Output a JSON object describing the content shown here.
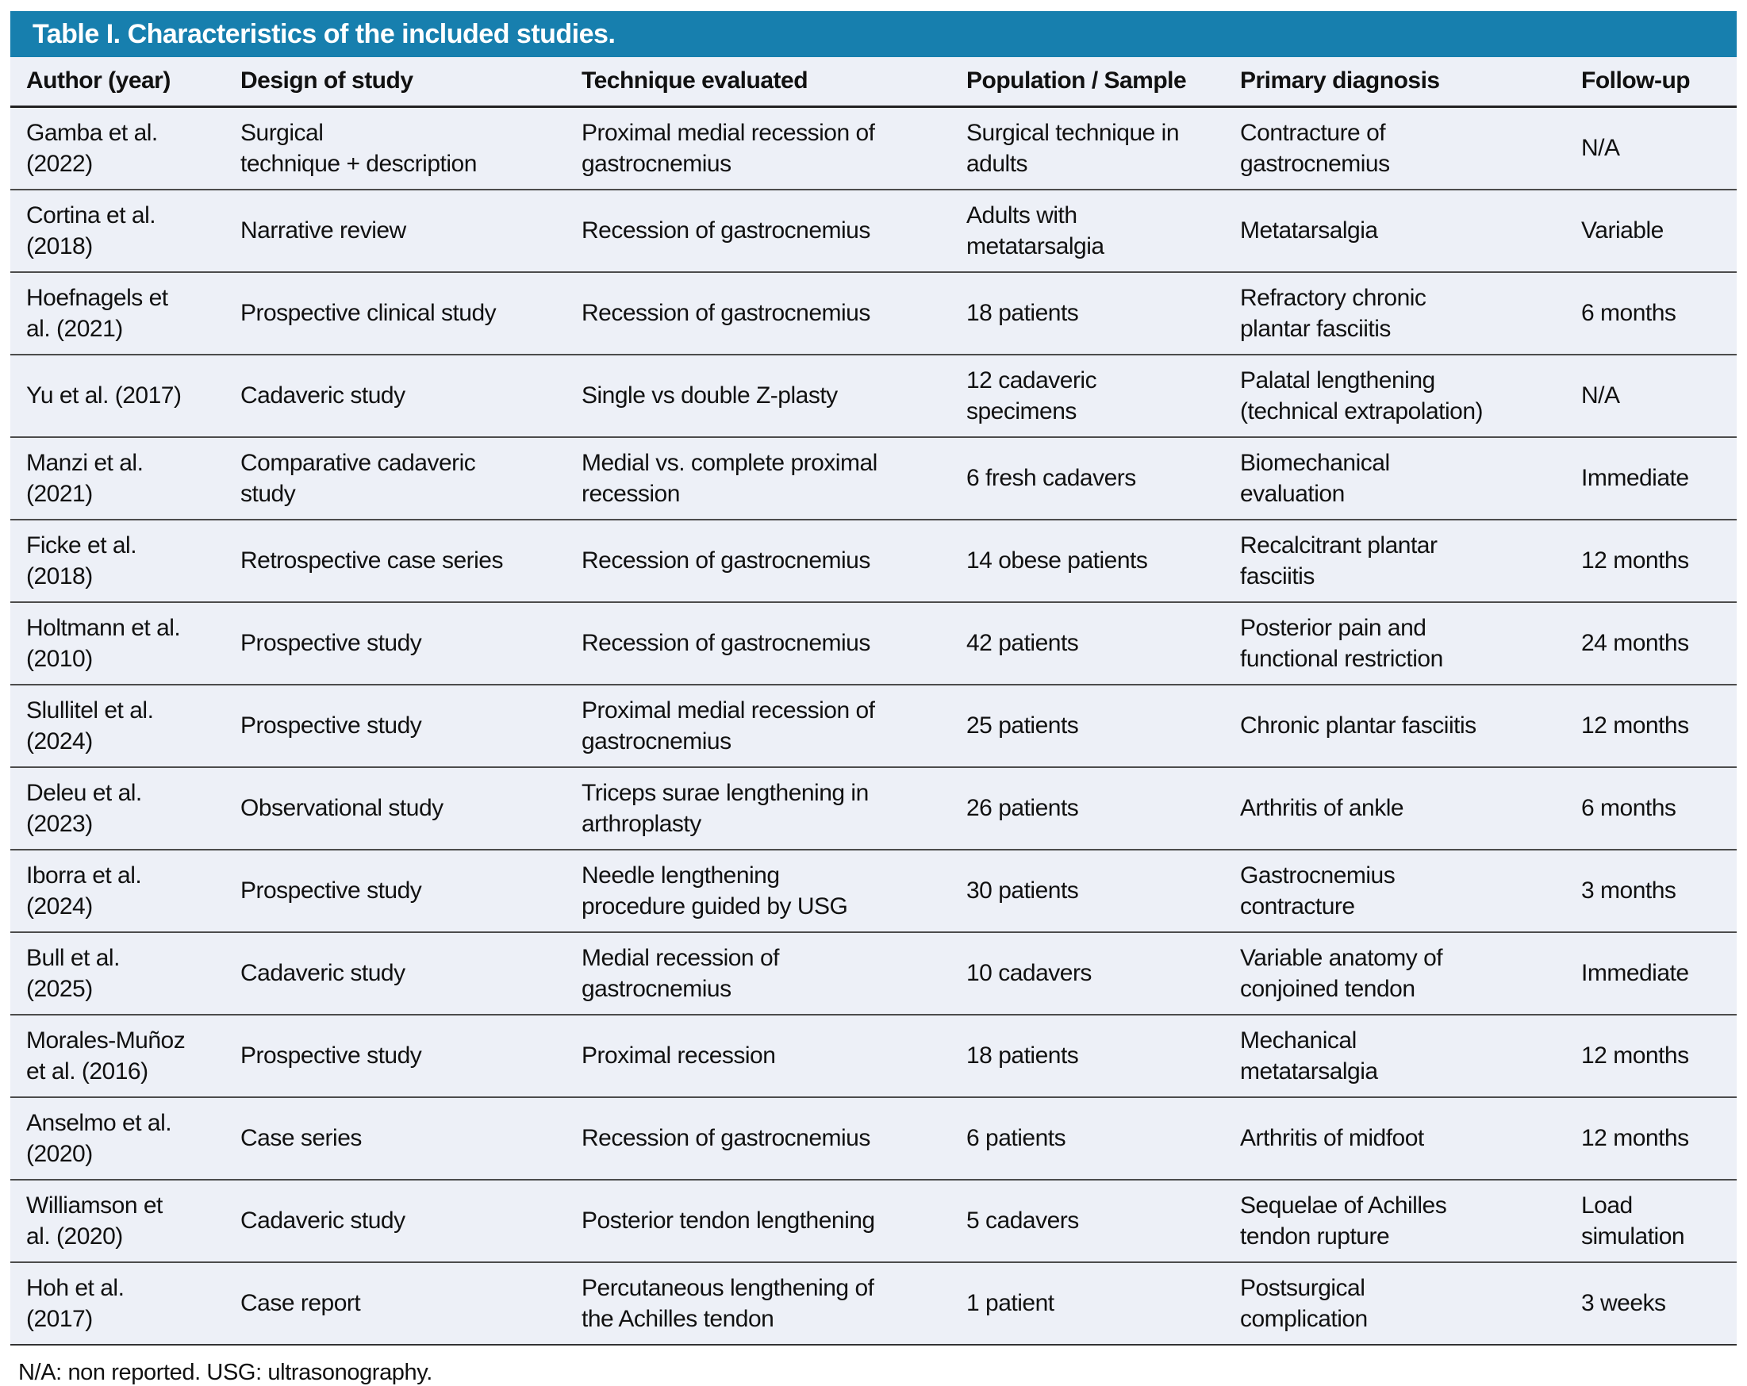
{
  "colors": {
    "header_blue": "#177fae",
    "row_background": "#edf0f7",
    "title_text": "#ffffff",
    "body_text": "#111111",
    "rule_dark": "#222222",
    "rule_row": "#4c4c4c"
  },
  "table": {
    "title": "Table I. Characteristics of the included studies.",
    "columns": [
      "Author (year)",
      "Design of study",
      "Technique evaluated",
      "Population / Sample",
      "Primary diagnosis",
      "Follow-up"
    ],
    "rows": [
      [
        "Gamba et al.\n(2022)",
        "Surgical\ntechnique + description",
        "Proximal medial recession of\ngastrocnemius",
        "Surgical technique in\nadults",
        "Contracture of\ngastrocnemius",
        "N/A"
      ],
      [
        "Cortina et al.\n(2018)",
        "Narrative review",
        "Recession of gastrocnemius",
        "Adults with\nmetatarsalgia",
        "Metatarsalgia",
        "Variable"
      ],
      [
        "Hoefnagels et\nal. (2021)",
        "Prospective clinical study",
        "Recession of gastrocnemius",
        "18 patients",
        "Refractory chronic\nplantar fasciitis",
        "6 months"
      ],
      [
        "Yu et al. (2017)",
        "Cadaveric study",
        "Single vs double Z-plasty",
        "12 cadaveric\nspecimens",
        "Palatal lengthening\n(technical extrapolation)",
        "N/A"
      ],
      [
        "Manzi et al.\n(2021)",
        "Comparative cadaveric\nstudy",
        "Medial vs. complete proximal\nrecession",
        "6 fresh cadavers",
        "Biomechanical\nevaluation",
        "Immediate"
      ],
      [
        "Ficke et al.\n(2018)",
        "Retrospective case series",
        "Recession of gastrocnemius",
        "14 obese patients",
        "Recalcitrant plantar\nfasciitis",
        "12 months"
      ],
      [
        "Holtmann et al.\n(2010)",
        "Prospective study",
        "Recession of gastrocnemius",
        "42 patients",
        "Posterior pain and\nfunctional restriction",
        "24 months"
      ],
      [
        "Slullitel et al.\n(2024)",
        "Prospective study",
        "Proximal medial recession of\ngastrocnemius",
        "25 patients",
        "Chronic plantar fasciitis",
        "12 months"
      ],
      [
        "Deleu et al.\n(2023)",
        "Observational study",
        "Triceps surae lengthening in\narthroplasty",
        "26 patients",
        "Arthritis of ankle",
        "6 months"
      ],
      [
        "Iborra et al.\n(2024)",
        "Prospective study",
        "Needle lengthening\nprocedure guided by USG",
        "30 patients",
        "Gastrocnemius\ncontracture",
        "3 months"
      ],
      [
        "Bull et al.\n(2025)",
        "Cadaveric study",
        "Medial recession of\ngastrocnemius",
        "10 cadavers",
        "Variable anatomy of\nconjoined tendon",
        "Immediate"
      ],
      [
        "Morales-Muñoz\net al. (2016)",
        "Prospective study",
        "Proximal recession",
        "18 patients",
        "Mechanical\nmetatarsalgia",
        "12 months"
      ],
      [
        "Anselmo et al.\n(2020)",
        "Case series",
        "Recession of gastrocnemius",
        "6 patients",
        "Arthritis of midfoot",
        "12 months"
      ],
      [
        "Williamson et\nal. (2020)",
        "Cadaveric study",
        "Posterior tendon lengthening",
        "5 cadavers",
        "Sequelae of Achilles\ntendon rupture",
        "Load\nsimulation"
      ],
      [
        "Hoh et al.\n(2017)",
        "Case report",
        "Percutaneous lengthening of\nthe Achilles tendon",
        "1 patient",
        "Postsurgical\ncomplication",
        "3 weeks"
      ]
    ],
    "footnote": "N/A: non reported. USG: ultrasonography."
  }
}
